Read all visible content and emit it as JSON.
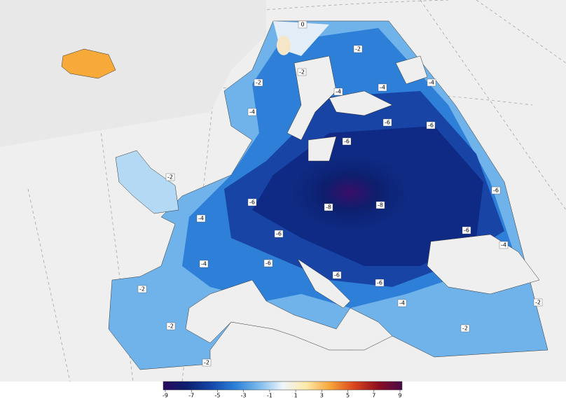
{
  "colorbar": {
    "ticks": [
      -9,
      -7,
      -5,
      -3,
      -1,
      1,
      3,
      5,
      7,
      9
    ],
    "range": [
      -9,
      9
    ],
    "colors": [
      "#2a0a5e",
      "#0c1f6e",
      "#1446a8",
      "#2b7fd6",
      "#7ab9ec",
      "#eef6fc",
      "#ffe9a8",
      "#f7a33a",
      "#d9461d",
      "#8e0e20",
      "#4a0a4a"
    ]
  },
  "contour_labels": [
    "0",
    "-2",
    "-2",
    "-2",
    "-4",
    "-4",
    "-4",
    "-4",
    "-6",
    "-6",
    "-6",
    "-2",
    "-6",
    "-8",
    "-8",
    "-6",
    "-4",
    "-6",
    "-6",
    "-4",
    "-4",
    "-6",
    "-6",
    "-6",
    "-2",
    "-4",
    "-2",
    "-2",
    "-2",
    "-2"
  ]
}
